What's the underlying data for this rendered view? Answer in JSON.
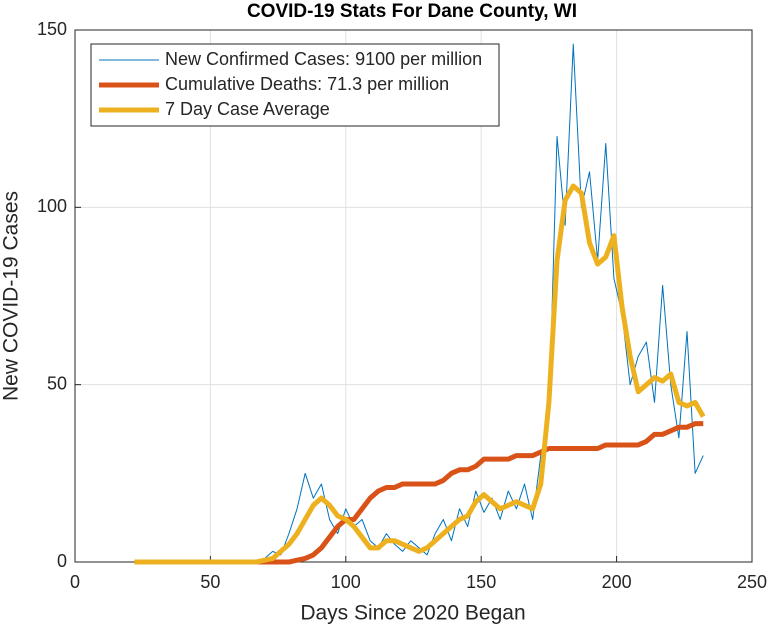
{
  "chart_data": {
    "type": "line",
    "title": "COVID-19 Stats For Dane County, WI",
    "x_label": "Days Since 2020 Began",
    "y_label": "New COVID-19 Cases",
    "x": [
      22,
      25,
      28,
      31,
      34,
      37,
      40,
      43,
      46,
      49,
      52,
      55,
      58,
      61,
      64,
      67,
      70,
      73,
      76,
      79,
      82,
      85,
      88,
      91,
      94,
      97,
      100,
      103,
      106,
      109,
      112,
      115,
      118,
      121,
      124,
      127,
      130,
      133,
      136,
      139,
      142,
      145,
      148,
      151,
      154,
      157,
      160,
      163,
      166,
      169,
      172,
      175,
      178,
      181,
      184,
      187,
      190,
      193,
      196,
      199,
      202,
      205,
      208,
      211,
      214,
      217,
      220,
      223,
      226,
      229,
      232
    ],
    "series": [
      {
        "name": "New Confirmed Cases: 9100 per million",
        "color": "#0072bd",
        "width": 1,
        "values": [
          0,
          0,
          0,
          0,
          0,
          0,
          0,
          0,
          0,
          0,
          0,
          0,
          0,
          0,
          0,
          0,
          1,
          3,
          2,
          8,
          15,
          25,
          18,
          22,
          12,
          8,
          15,
          10,
          12,
          6,
          4,
          8,
          5,
          3,
          6,
          4,
          2,
          8,
          12,
          6,
          15,
          10,
          20,
          14,
          18,
          12,
          20,
          15,
          22,
          12,
          30,
          40,
          120,
          95,
          146,
          100,
          110,
          85,
          118,
          80,
          70,
          50,
          58,
          62,
          45,
          78,
          50,
          35,
          65,
          25,
          30
        ]
      },
      {
        "name": "Cumulative Deaths: 71.3 per million",
        "color": "#d95319",
        "width": 5,
        "values": [
          0,
          0,
          0,
          0,
          0,
          0,
          0,
          0,
          0,
          0,
          0,
          0,
          0,
          0,
          0,
          0,
          0,
          0,
          0,
          0,
          0.5,
          1,
          2,
          4,
          7,
          10,
          12,
          12,
          15,
          18,
          20,
          21,
          21,
          22,
          22,
          22,
          22,
          22,
          23,
          25,
          26,
          26,
          27,
          29,
          29,
          29,
          29,
          30,
          30,
          30,
          31,
          32,
          32,
          32,
          32,
          32,
          32,
          32,
          33,
          33,
          33,
          33,
          33,
          34,
          36,
          36,
          37,
          38,
          38,
          39,
          39
        ]
      },
      {
        "name": "7 Day Case Average",
        "color": "#edb120",
        "width": 5,
        "values": [
          0,
          0,
          0,
          0,
          0,
          0,
          0,
          0,
          0,
          0,
          0,
          0,
          0,
          0,
          0,
          0,
          0.5,
          1,
          3,
          5,
          8,
          12,
          16,
          18,
          16,
          13,
          12,
          10,
          7,
          4,
          4,
          6,
          6,
          5,
          4,
          3,
          4,
          6,
          8,
          10,
          12,
          13,
          17,
          19,
          17,
          15,
          16,
          17,
          16,
          15,
          22,
          45,
          85,
          102,
          106,
          104,
          90,
          84,
          86,
          92,
          72,
          58,
          48,
          50,
          52,
          51,
          53,
          45,
          44,
          45,
          41
        ]
      }
    ],
    "xlim": [
      0,
      250
    ],
    "xticks": [
      0,
      50,
      100,
      150,
      200,
      250
    ],
    "ylim": [
      0,
      150
    ],
    "yticks": [
      0,
      50,
      100,
      150
    ],
    "grid": true,
    "legend": "upper left"
  }
}
